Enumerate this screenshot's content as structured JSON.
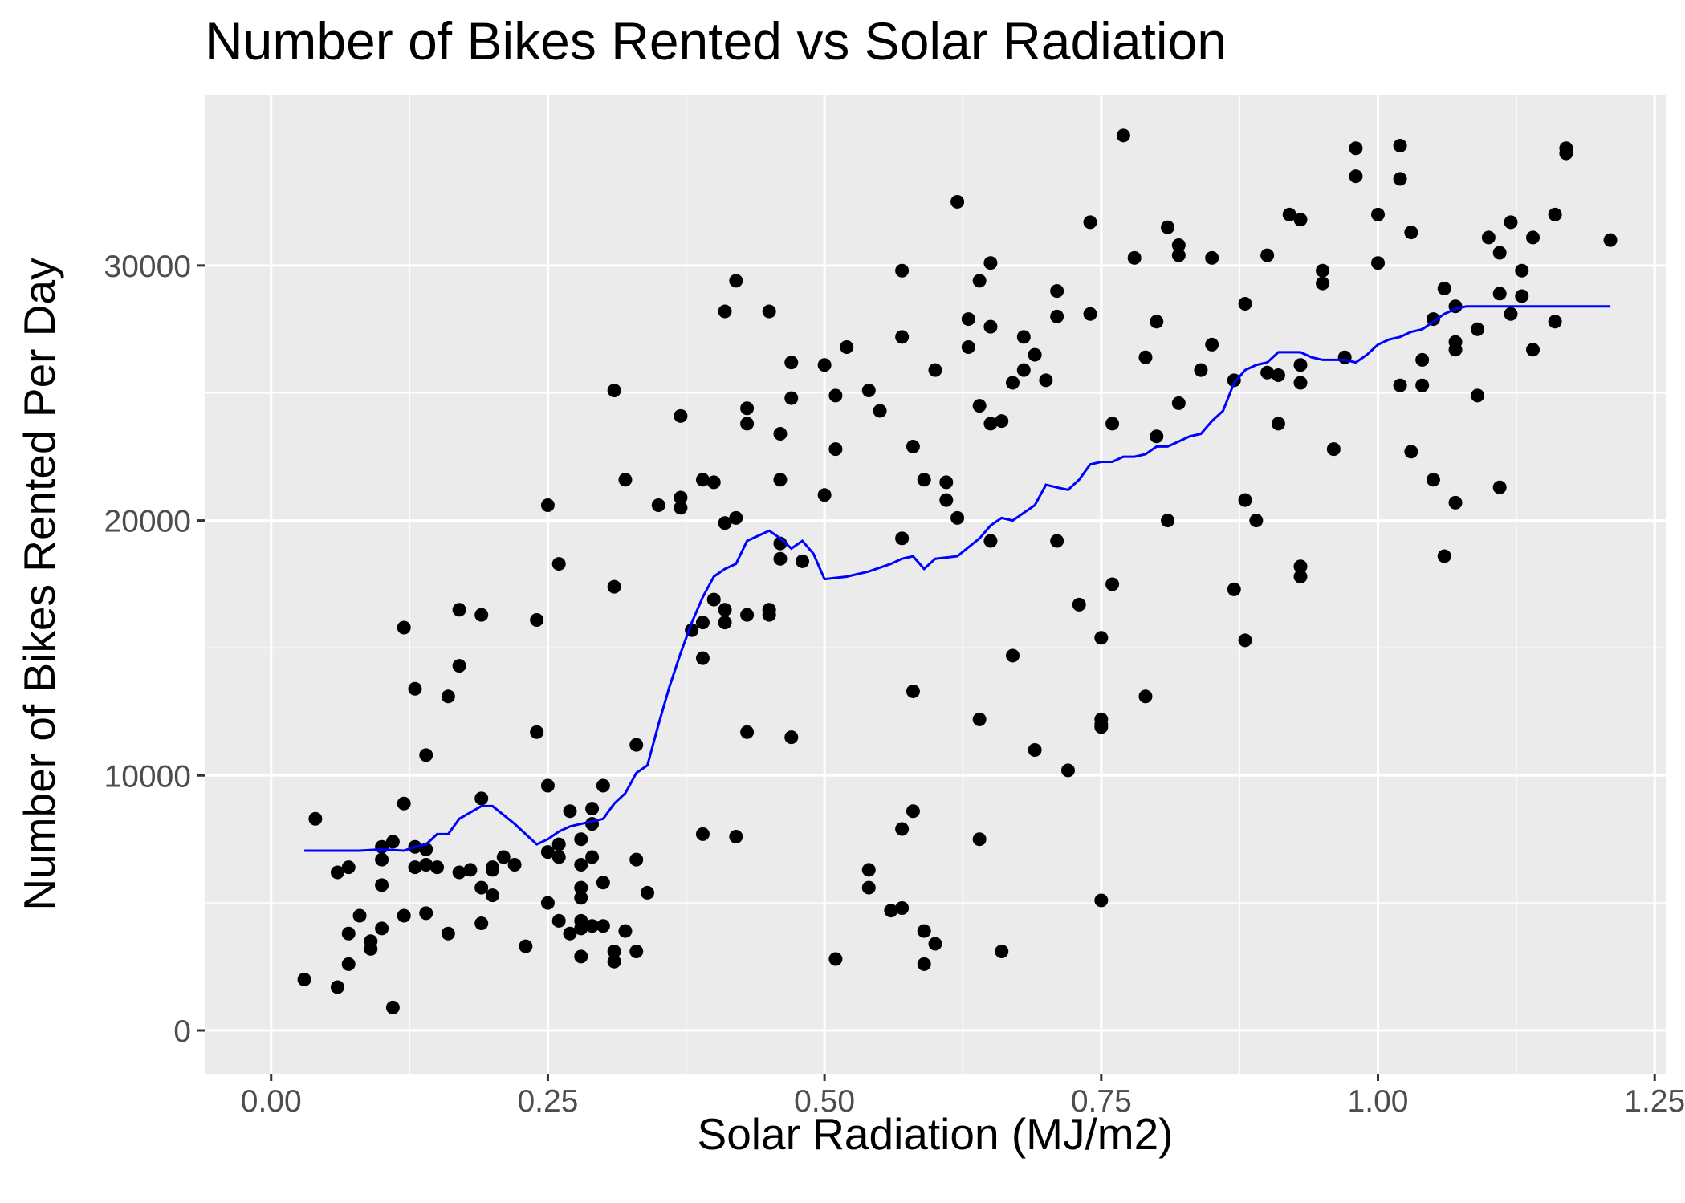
{
  "chart_data": {
    "type": "scatter",
    "title": "Number of Bikes Rented vs Solar Radiation",
    "xlabel": "Solar Radiation (MJ/m2)",
    "ylabel": "Number of Bikes Rented Per Day",
    "xlim": [
      -0.06,
      1.26
    ],
    "ylim": [
      -1700,
      36700
    ],
    "x_ticks": [
      0.0,
      0.25,
      0.5,
      0.75,
      1.0,
      1.25
    ],
    "x_tick_labels": [
      "0.00",
      "0.25",
      "0.50",
      "0.75",
      "1.00",
      "1.25"
    ],
    "y_ticks": [
      0,
      10000,
      20000,
      30000
    ],
    "y_tick_labels": [
      "0",
      "10000",
      "20000",
      "30000"
    ],
    "grid": true,
    "background": "#ebebeb",
    "point_color": "#000000",
    "line_color": "#0000ff",
    "points": [
      [
        0.03,
        2000
      ],
      [
        0.04,
        8300
      ],
      [
        0.06,
        1700
      ],
      [
        0.06,
        6200
      ],
      [
        0.07,
        6400
      ],
      [
        0.07,
        2600
      ],
      [
        0.07,
        3800
      ],
      [
        0.08,
        4500
      ],
      [
        0.09,
        3500
      ],
      [
        0.09,
        3200
      ],
      [
        0.1,
        4000
      ],
      [
        0.1,
        7200
      ],
      [
        0.1,
        6700
      ],
      [
        0.1,
        5700
      ],
      [
        0.11,
        7400
      ],
      [
        0.11,
        900
      ],
      [
        0.12,
        4500
      ],
      [
        0.12,
        8900
      ],
      [
        0.12,
        15800
      ],
      [
        0.13,
        13400
      ],
      [
        0.13,
        7200
      ],
      [
        0.13,
        6400
      ],
      [
        0.14,
        10800
      ],
      [
        0.14,
        4600
      ],
      [
        0.14,
        6500
      ],
      [
        0.14,
        7100
      ],
      [
        0.15,
        6400
      ],
      [
        0.16,
        13100
      ],
      [
        0.16,
        3800
      ],
      [
        0.17,
        6200
      ],
      [
        0.17,
        16500
      ],
      [
        0.17,
        14300
      ],
      [
        0.18,
        6300
      ],
      [
        0.19,
        9100
      ],
      [
        0.19,
        5600
      ],
      [
        0.19,
        4200
      ],
      [
        0.19,
        16300
      ],
      [
        0.2,
        6300
      ],
      [
        0.2,
        6400
      ],
      [
        0.2,
        5300
      ],
      [
        0.21,
        6800
      ],
      [
        0.22,
        6500
      ],
      [
        0.23,
        3300
      ],
      [
        0.24,
        16100
      ],
      [
        0.24,
        11700
      ],
      [
        0.25,
        5000
      ],
      [
        0.25,
        20600
      ],
      [
        0.25,
        9600
      ],
      [
        0.25,
        7000
      ],
      [
        0.26,
        7300
      ],
      [
        0.26,
        6800
      ],
      [
        0.26,
        4300
      ],
      [
        0.26,
        18300
      ],
      [
        0.27,
        8600
      ],
      [
        0.27,
        3800
      ],
      [
        0.28,
        4000
      ],
      [
        0.28,
        6500
      ],
      [
        0.28,
        7500
      ],
      [
        0.28,
        4300
      ],
      [
        0.28,
        2900
      ],
      [
        0.28,
        5600
      ],
      [
        0.28,
        5200
      ],
      [
        0.29,
        8700
      ],
      [
        0.29,
        8100
      ],
      [
        0.29,
        4100
      ],
      [
        0.29,
        6800
      ],
      [
        0.3,
        5800
      ],
      [
        0.3,
        4100
      ],
      [
        0.3,
        9600
      ],
      [
        0.31,
        3100
      ],
      [
        0.31,
        17400
      ],
      [
        0.31,
        25100
      ],
      [
        0.31,
        2700
      ],
      [
        0.32,
        3900
      ],
      [
        0.32,
        21600
      ],
      [
        0.33,
        3100
      ],
      [
        0.33,
        11200
      ],
      [
        0.33,
        6700
      ],
      [
        0.34,
        5400
      ],
      [
        0.35,
        20600
      ],
      [
        0.37,
        24100
      ],
      [
        0.37,
        20900
      ],
      [
        0.37,
        20500
      ],
      [
        0.38,
        15700
      ],
      [
        0.39,
        16000
      ],
      [
        0.39,
        14600
      ],
      [
        0.39,
        21600
      ],
      [
        0.39,
        7700
      ],
      [
        0.4,
        21500
      ],
      [
        0.4,
        16900
      ],
      [
        0.41,
        16500
      ],
      [
        0.41,
        16000
      ],
      [
        0.41,
        28200
      ],
      [
        0.41,
        19900
      ],
      [
        0.42,
        29400
      ],
      [
        0.42,
        7600
      ],
      [
        0.42,
        20100
      ],
      [
        0.43,
        16300
      ],
      [
        0.43,
        11700
      ],
      [
        0.43,
        24400
      ],
      [
        0.43,
        23800
      ],
      [
        0.45,
        16300
      ],
      [
        0.45,
        16500
      ],
      [
        0.45,
        28200
      ],
      [
        0.46,
        19100
      ],
      [
        0.46,
        23400
      ],
      [
        0.46,
        21600
      ],
      [
        0.46,
        18500
      ],
      [
        0.47,
        11500
      ],
      [
        0.47,
        26200
      ],
      [
        0.47,
        24800
      ],
      [
        0.48,
        18400
      ],
      [
        0.5,
        26100
      ],
      [
        0.5,
        21000
      ],
      [
        0.51,
        24900
      ],
      [
        0.51,
        22800
      ],
      [
        0.51,
        2800
      ],
      [
        0.52,
        26800
      ],
      [
        0.54,
        25100
      ],
      [
        0.54,
        6300
      ],
      [
        0.54,
        5600
      ],
      [
        0.55,
        24300
      ],
      [
        0.56,
        4700
      ],
      [
        0.57,
        29800
      ],
      [
        0.57,
        27200
      ],
      [
        0.57,
        19300
      ],
      [
        0.57,
        7900
      ],
      [
        0.57,
        4800
      ],
      [
        0.58,
        8600
      ],
      [
        0.58,
        22900
      ],
      [
        0.58,
        13300
      ],
      [
        0.59,
        21600
      ],
      [
        0.59,
        3900
      ],
      [
        0.59,
        2600
      ],
      [
        0.6,
        25900
      ],
      [
        0.6,
        3400
      ],
      [
        0.61,
        21500
      ],
      [
        0.61,
        20800
      ],
      [
        0.62,
        32500
      ],
      [
        0.62,
        20100
      ],
      [
        0.63,
        27900
      ],
      [
        0.63,
        26800
      ],
      [
        0.64,
        29400
      ],
      [
        0.64,
        7500
      ],
      [
        0.64,
        12200
      ],
      [
        0.64,
        24500
      ],
      [
        0.65,
        19200
      ],
      [
        0.65,
        30100
      ],
      [
        0.65,
        27600
      ],
      [
        0.65,
        23800
      ],
      [
        0.66,
        23900
      ],
      [
        0.66,
        3100
      ],
      [
        0.67,
        25400
      ],
      [
        0.67,
        14700
      ],
      [
        0.68,
        27200
      ],
      [
        0.68,
        25900
      ],
      [
        0.69,
        26500
      ],
      [
        0.69,
        11000
      ],
      [
        0.7,
        25500
      ],
      [
        0.71,
        28000
      ],
      [
        0.71,
        29000
      ],
      [
        0.71,
        19200
      ],
      [
        0.72,
        10200
      ],
      [
        0.73,
        16700
      ],
      [
        0.74,
        28100
      ],
      [
        0.74,
        31700
      ],
      [
        0.75,
        15400
      ],
      [
        0.75,
        12000
      ],
      [
        0.75,
        12200
      ],
      [
        0.75,
        5100
      ],
      [
        0.75,
        11900
      ],
      [
        0.76,
        17500
      ],
      [
        0.76,
        23800
      ],
      [
        0.77,
        35100
      ],
      [
        0.78,
        30300
      ],
      [
        0.79,
        26400
      ],
      [
        0.79,
        13100
      ],
      [
        0.8,
        27800
      ],
      [
        0.8,
        23300
      ],
      [
        0.81,
        31500
      ],
      [
        0.81,
        20000
      ],
      [
        0.82,
        30400
      ],
      [
        0.82,
        24600
      ],
      [
        0.82,
        30800
      ],
      [
        0.84,
        25900
      ],
      [
        0.85,
        26900
      ],
      [
        0.85,
        30300
      ],
      [
        0.87,
        25500
      ],
      [
        0.87,
        17300
      ],
      [
        0.88,
        20800
      ],
      [
        0.88,
        28500
      ],
      [
        0.88,
        15300
      ],
      [
        0.89,
        20000
      ],
      [
        0.9,
        25800
      ],
      [
        0.9,
        30400
      ],
      [
        0.91,
        25700
      ],
      [
        0.91,
        23800
      ],
      [
        0.92,
        32000
      ],
      [
        0.93,
        25400
      ],
      [
        0.93,
        26100
      ],
      [
        0.93,
        18200
      ],
      [
        0.93,
        17800
      ],
      [
        0.93,
        31800
      ],
      [
        0.95,
        29800
      ],
      [
        0.95,
        29300
      ],
      [
        0.96,
        22800
      ],
      [
        0.97,
        26400
      ],
      [
        0.98,
        34600
      ],
      [
        0.98,
        33500
      ],
      [
        1.0,
        32000
      ],
      [
        1.0,
        30100
      ],
      [
        1.02,
        33400
      ],
      [
        1.02,
        34700
      ],
      [
        1.02,
        25300
      ],
      [
        1.03,
        31300
      ],
      [
        1.03,
        22700
      ],
      [
        1.04,
        25300
      ],
      [
        1.04,
        26300
      ],
      [
        1.05,
        21600
      ],
      [
        1.05,
        27900
      ],
      [
        1.06,
        18600
      ],
      [
        1.06,
        29100
      ],
      [
        1.07,
        28400
      ],
      [
        1.07,
        27000
      ],
      [
        1.07,
        26700
      ],
      [
        1.07,
        20700
      ],
      [
        1.09,
        24900
      ],
      [
        1.09,
        27500
      ],
      [
        1.1,
        31100
      ],
      [
        1.11,
        30500
      ],
      [
        1.11,
        21300
      ],
      [
        1.11,
        28900
      ],
      [
        1.12,
        28100
      ],
      [
        1.12,
        31700
      ],
      [
        1.13,
        28800
      ],
      [
        1.13,
        29800
      ],
      [
        1.14,
        26700
      ],
      [
        1.14,
        31100
      ],
      [
        1.16,
        27800
      ],
      [
        1.16,
        32000
      ],
      [
        1.17,
        34400
      ],
      [
        1.17,
        34600
      ],
      [
        1.21,
        31000
      ]
    ],
    "smooth_line": [
      [
        0.03,
        7050
      ],
      [
        0.05,
        7050
      ],
      [
        0.08,
        7050
      ],
      [
        0.1,
        7100
      ],
      [
        0.12,
        7050
      ],
      [
        0.13,
        7200
      ],
      [
        0.14,
        7300
      ],
      [
        0.15,
        7700
      ],
      [
        0.16,
        7700
      ],
      [
        0.17,
        8300
      ],
      [
        0.19,
        8800
      ],
      [
        0.2,
        8800
      ],
      [
        0.22,
        8100
      ],
      [
        0.23,
        7700
      ],
      [
        0.24,
        7300
      ],
      [
        0.25,
        7500
      ],
      [
        0.26,
        7800
      ],
      [
        0.27,
        8000
      ],
      [
        0.28,
        8100
      ],
      [
        0.29,
        8200
      ],
      [
        0.3,
        8300
      ],
      [
        0.31,
        8900
      ],
      [
        0.32,
        9300
      ],
      [
        0.33,
        10100
      ],
      [
        0.34,
        10400
      ],
      [
        0.35,
        12000
      ],
      [
        0.36,
        13500
      ],
      [
        0.37,
        14800
      ],
      [
        0.38,
        16000
      ],
      [
        0.39,
        17000
      ],
      [
        0.4,
        17800
      ],
      [
        0.41,
        18100
      ],
      [
        0.42,
        18300
      ],
      [
        0.43,
        19200
      ],
      [
        0.44,
        19400
      ],
      [
        0.45,
        19600
      ],
      [
        0.46,
        19300
      ],
      [
        0.47,
        18900
      ],
      [
        0.48,
        19200
      ],
      [
        0.49,
        18700
      ],
      [
        0.5,
        17700
      ],
      [
        0.52,
        17800
      ],
      [
        0.54,
        18000
      ],
      [
        0.56,
        18300
      ],
      [
        0.57,
        18500
      ],
      [
        0.58,
        18600
      ],
      [
        0.59,
        18100
      ],
      [
        0.6,
        18500
      ],
      [
        0.62,
        18600
      ],
      [
        0.64,
        19300
      ],
      [
        0.65,
        19800
      ],
      [
        0.66,
        20100
      ],
      [
        0.67,
        20000
      ],
      [
        0.68,
        20300
      ],
      [
        0.69,
        20600
      ],
      [
        0.7,
        21400
      ],
      [
        0.71,
        21300
      ],
      [
        0.72,
        21200
      ],
      [
        0.73,
        21600
      ],
      [
        0.74,
        22200
      ],
      [
        0.75,
        22300
      ],
      [
        0.76,
        22300
      ],
      [
        0.77,
        22500
      ],
      [
        0.78,
        22500
      ],
      [
        0.79,
        22600
      ],
      [
        0.8,
        22900
      ],
      [
        0.81,
        22900
      ],
      [
        0.82,
        23100
      ],
      [
        0.83,
        23300
      ],
      [
        0.84,
        23400
      ],
      [
        0.85,
        23900
      ],
      [
        0.86,
        24300
      ],
      [
        0.87,
        25400
      ],
      [
        0.88,
        25900
      ],
      [
        0.89,
        26100
      ],
      [
        0.9,
        26200
      ],
      [
        0.91,
        26600
      ],
      [
        0.92,
        26600
      ],
      [
        0.93,
        26600
      ],
      [
        0.94,
        26400
      ],
      [
        0.95,
        26300
      ],
      [
        0.96,
        26300
      ],
      [
        0.97,
        26300
      ],
      [
        0.98,
        26200
      ],
      [
        0.99,
        26500
      ],
      [
        1.0,
        26900
      ],
      [
        1.01,
        27100
      ],
      [
        1.02,
        27200
      ],
      [
        1.03,
        27400
      ],
      [
        1.04,
        27500
      ],
      [
        1.05,
        27800
      ],
      [
        1.06,
        28100
      ],
      [
        1.07,
        28300
      ],
      [
        1.08,
        28400
      ],
      [
        1.1,
        28400
      ],
      [
        1.15,
        28400
      ],
      [
        1.21,
        28400
      ]
    ]
  }
}
